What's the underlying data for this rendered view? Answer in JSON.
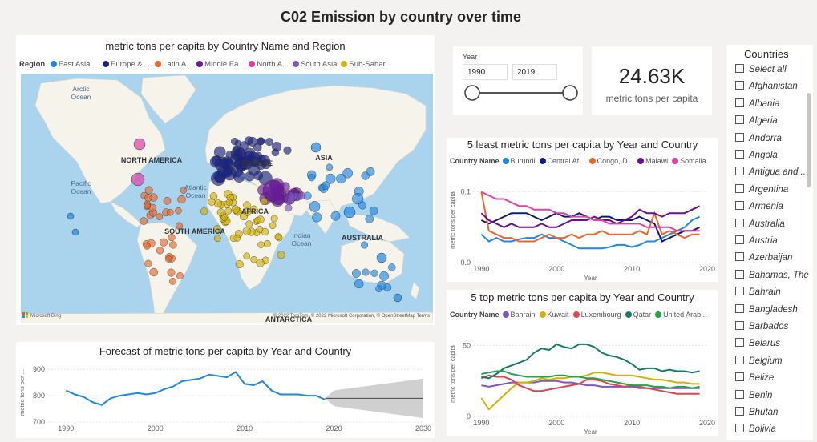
{
  "report_title": "C02 Emission by country over time",
  "map": {
    "title": "metric tons per capita by Country Name and Region",
    "legend_title": "Region",
    "legend": [
      {
        "label": "East Asia ...",
        "color": "#1f88e5"
      },
      {
        "label": "Europe & ...",
        "color": "#1a237e"
      },
      {
        "label": "Latin A...",
        "color": "#e8682a"
      },
      {
        "label": "Middle Ea...",
        "color": "#6a1b9a"
      },
      {
        "label": "North A...",
        "color": "#e040a8"
      },
      {
        "label": "South Asia",
        "color": "#7e57c2"
      },
      {
        "label": "Sub-Sahar...",
        "color": "#d4b000"
      }
    ],
    "labels": {
      "arctic": "Arctic\nOcean",
      "north_america": "NORTH AMERICA",
      "europe": "EUROPE",
      "asia": "ASIA",
      "pacific": "Pacific\nOcean",
      "atlantic": "Atlantic\nOcean",
      "africa": "AFRICA",
      "south_america": "SOUTH AMERICA",
      "indian": "Indian\nOcean",
      "australia": "AUSTRALIA",
      "antarctica": "ANTARCTICA"
    },
    "attribution": "© 2022 TomTom, © 2022 Microsoft Corporation, © OpenStreetMap  Terms",
    "bing": "Microsoft Bing"
  },
  "year_slicer": {
    "label": "Year",
    "start": "1990",
    "end": "2019"
  },
  "kpi": {
    "value": "24.63K",
    "label": "metric tons per capita"
  },
  "countries_slicer": {
    "title": "Countries",
    "items": [
      "Select all",
      "Afghanistan",
      "Albania",
      "Algeria",
      "Andorra",
      "Angola",
      "Antigua and...",
      "Argentina",
      "Armenia",
      "Australia",
      "Austria",
      "Azerbaijan",
      "Bahamas, The",
      "Bahrain",
      "Bangladesh",
      "Barbados",
      "Belarus",
      "Belgium",
      "Belize",
      "Benin",
      "Bhutan",
      "Bolivia"
    ]
  },
  "chart_data": [
    {
      "type": "line",
      "title": "5 least metric tons per capita by Year and Country",
      "legend_title": "Country Name",
      "xlabel": "Year",
      "ylabel": "metric tons per capita",
      "xlim": [
        1989,
        2020
      ],
      "ylim": [
        0,
        0.12
      ],
      "xticks": [
        1990,
        2000,
        2010,
        2020
      ],
      "yticks": [
        0.0,
        0.1
      ],
      "ytick_labels": [
        "0.0",
        "0.1"
      ],
      "x": [
        1990,
        1991,
        1992,
        1993,
        1994,
        1995,
        1996,
        1997,
        1998,
        1999,
        2000,
        2001,
        2002,
        2003,
        2004,
        2005,
        2006,
        2007,
        2008,
        2009,
        2010,
        2011,
        2012,
        2013,
        2014,
        2015,
        2016,
        2017,
        2018,
        2019
      ],
      "series": [
        {
          "name": "Burundi",
          "color": "#1f88e5",
          "values": [
            0.04,
            0.03,
            0.035,
            0.03,
            0.03,
            0.033,
            0.035,
            0.035,
            0.04,
            0.035,
            0.035,
            0.03,
            0.025,
            0.02,
            0.02,
            0.02,
            0.02,
            0.022,
            0.025,
            0.025,
            0.022,
            0.025,
            0.03,
            0.03,
            0.035,
            0.04,
            0.045,
            0.05,
            0.06,
            0.065
          ]
        },
        {
          "name": "Central Af...",
          "color": "#0d1a7a",
          "values": [
            0.06,
            0.055,
            0.06,
            0.065,
            0.07,
            0.07,
            0.07,
            0.065,
            0.06,
            0.065,
            0.07,
            0.065,
            0.065,
            0.07,
            0.065,
            0.06,
            0.065,
            0.065,
            0.06,
            0.06,
            0.06,
            0.065,
            0.06,
            0.055,
            0.03,
            0.035,
            0.04,
            0.045,
            0.045,
            0.05
          ]
        },
        {
          "name": "Congo, D...",
          "color": "#e8682a",
          "values": [
            0.1,
            0.045,
            0.04,
            0.035,
            0.035,
            0.03,
            0.03,
            0.03,
            0.035,
            0.04,
            0.035,
            0.035,
            0.04,
            0.035,
            0.04,
            0.04,
            0.045,
            0.04,
            0.04,
            0.04,
            0.04,
            0.045,
            0.04,
            0.07,
            0.04,
            0.045,
            0.04,
            0.035,
            0.04,
            0.04
          ]
        },
        {
          "name": "Malawi",
          "color": "#6a0f8e",
          "values": [
            0.07,
            0.06,
            0.055,
            0.05,
            0.055,
            0.05,
            0.05,
            0.05,
            0.055,
            0.05,
            0.05,
            0.055,
            0.06,
            0.06,
            0.06,
            0.065,
            0.06,
            0.06,
            0.055,
            0.06,
            0.065,
            0.075,
            0.07,
            0.07,
            0.065,
            0.07,
            0.07,
            0.07,
            0.075,
            0.08
          ]
        },
        {
          "name": "Somalia",
          "color": "#e040a8",
          "values": [
            0.1,
            0.095,
            0.09,
            0.09,
            0.085,
            0.08,
            0.08,
            0.075,
            0.075,
            0.075,
            0.07,
            0.07,
            0.065,
            0.065,
            0.065,
            0.06,
            0.06,
            0.055,
            0.055,
            0.055,
            0.055,
            0.055,
            0.05,
            0.05,
            0.05,
            0.05,
            0.045,
            0.045,
            0.045,
            0.045
          ]
        }
      ]
    },
    {
      "type": "line",
      "title": "5 top metric tons per capita by Year and Country",
      "legend_title": "Country Name",
      "xlabel": "Year",
      "ylabel": "metric tons per capita",
      "xlim": [
        1989,
        2020
      ],
      "ylim": [
        0,
        60
      ],
      "xticks": [
        1990,
        2000,
        2010,
        2020
      ],
      "yticks": [
        0,
        50
      ],
      "ytick_labels": [
        "0",
        "50"
      ],
      "x": [
        1990,
        1991,
        1992,
        1993,
        1994,
        1995,
        1996,
        1997,
        1998,
        1999,
        2000,
        2001,
        2002,
        2003,
        2004,
        2005,
        2006,
        2007,
        2008,
        2009,
        2010,
        2011,
        2012,
        2013,
        2014,
        2015,
        2016,
        2017,
        2018,
        2019
      ],
      "series": [
        {
          "name": "Bahrain",
          "color": "#7e57c2",
          "values": [
            22,
            21,
            22,
            23,
            24,
            24,
            24,
            24,
            25,
            25,
            25,
            24,
            24,
            23,
            22,
            22,
            21,
            21,
            21,
            21,
            21,
            20,
            20,
            20,
            20,
            20,
            20,
            20,
            20,
            20
          ]
        },
        {
          "name": "Kuwait",
          "color": "#d4b000",
          "values": [
            13,
            5,
            10,
            15,
            20,
            24,
            24,
            25,
            27,
            26,
            27,
            27,
            28,
            28,
            29,
            31,
            31,
            30,
            29,
            29,
            29,
            28,
            27,
            26,
            26,
            25,
            24,
            24,
            23,
            23
          ]
        },
        {
          "name": "Luxembourg",
          "color": "#e0454f",
          "values": [
            27,
            29,
            28,
            28,
            26,
            22,
            20,
            18,
            18,
            19,
            20,
            21,
            22,
            23,
            26,
            26,
            25,
            23,
            22,
            21,
            22,
            21,
            20,
            19,
            18,
            17,
            16,
            16,
            16,
            16
          ]
        },
        {
          "name": "Qatar",
          "color": "#167a6a",
          "values": [
            28,
            27,
            30,
            34,
            36,
            38,
            40,
            45,
            48,
            47,
            51,
            49,
            48,
            51,
            51,
            49,
            45,
            43,
            42,
            40,
            37,
            33,
            34,
            34,
            32,
            33,
            32,
            32,
            31,
            32
          ]
        },
        {
          "name": "United Arab...",
          "color": "#21a34a",
          "values": [
            30,
            31,
            32,
            32,
            30,
            29,
            28,
            28,
            28,
            28,
            29,
            29,
            28,
            28,
            27,
            27,
            26,
            25,
            24,
            23,
            22,
            22,
            22,
            21,
            21,
            20,
            21,
            21,
            20,
            21
          ]
        }
      ]
    },
    {
      "type": "line",
      "title": "Forecast of metric tons per capita by Year and Country",
      "xlabel": "",
      "ylabel": "metric tons per ...",
      "xlim": [
        1988,
        2030
      ],
      "ylim": [
        700,
        925
      ],
      "xticks": [
        1990,
        2000,
        2010,
        2020,
        2030
      ],
      "yticks": [
        700,
        800,
        900
      ],
      "x": [
        1990,
        1991,
        1992,
        1993,
        1994,
        1995,
        1996,
        1997,
        1998,
        1999,
        2000,
        2001,
        2002,
        2003,
        2004,
        2005,
        2006,
        2007,
        2008,
        2009,
        2010,
        2011,
        2012,
        2013,
        2014,
        2015,
        2016,
        2017,
        2018,
        2019
      ],
      "series": [
        {
          "name": "metric tons per capita",
          "color": "#1f88e5",
          "values": [
            820,
            805,
            795,
            775,
            765,
            790,
            800,
            805,
            810,
            805,
            810,
            825,
            835,
            855,
            860,
            865,
            880,
            875,
            870,
            890,
            845,
            840,
            855,
            820,
            805,
            805,
            805,
            800,
            800,
            785
          ]
        }
      ],
      "forecast": {
        "x": [
          2019,
          2020,
          2030
        ],
        "value": 790,
        "upper": [
          790,
          820,
          865
        ],
        "lower": [
          790,
          760,
          715
        ],
        "color": "#444444",
        "band_color": "#d0d0d0"
      }
    }
  ]
}
